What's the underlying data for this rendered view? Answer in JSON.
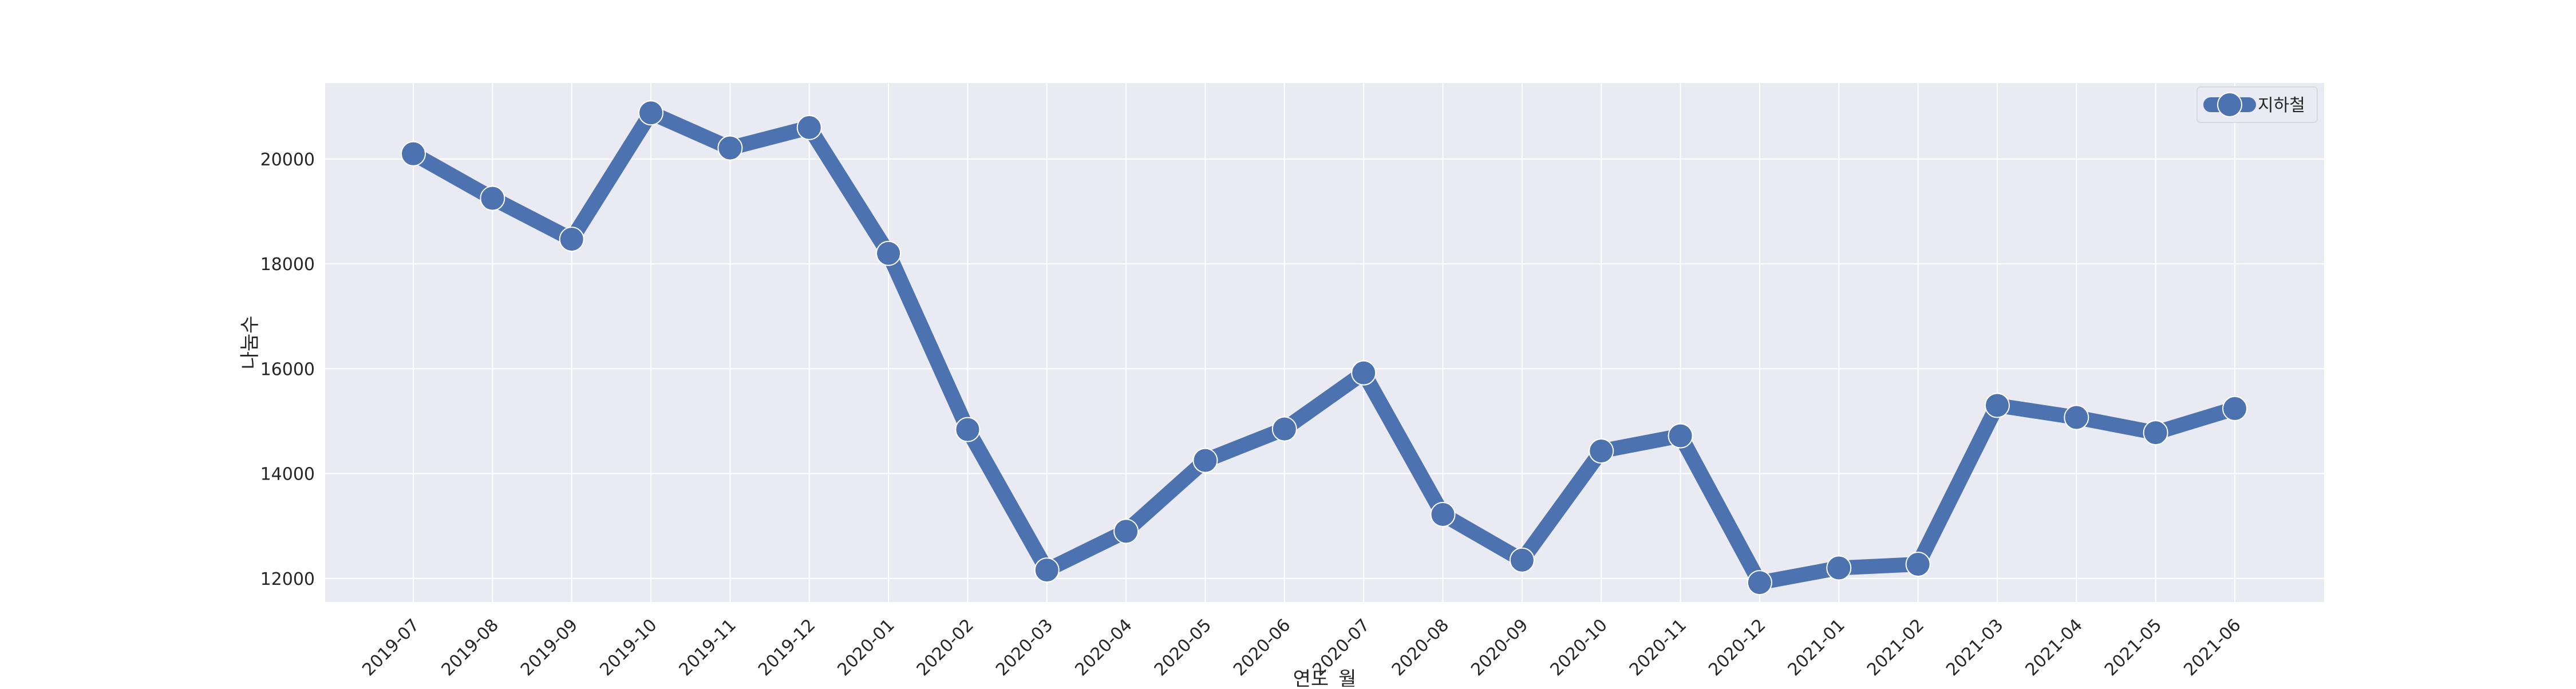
{
  "chart_data": {
    "type": "line",
    "title": "",
    "xlabel": "연도_월",
    "ylabel": "나눔수",
    "categories": [
      "2019-07",
      "2019-08",
      "2019-09",
      "2019-10",
      "2019-11",
      "2019-12",
      "2020-01",
      "2020-02",
      "2020-03",
      "2020-04",
      "2020-05",
      "2020-06",
      "2020-07",
      "2020-08",
      "2020-09",
      "2020-10",
      "2020-11",
      "2020-12",
      "2021-01",
      "2021-02",
      "2021-03",
      "2021-04",
      "2021-05",
      "2021-06"
    ],
    "series": [
      {
        "name": "지하철",
        "color": "#4c72b0",
        "values": [
          20100,
          19250,
          18470,
          20880,
          20210,
          20600,
          18200,
          14840,
          12160,
          12900,
          14250,
          14850,
          15920,
          13220,
          12350,
          14430,
          14720,
          11920,
          12200,
          12270,
          15300,
          15070,
          14780,
          15240
        ]
      }
    ],
    "ylim": [
      11550,
      21450
    ],
    "yticks": [
      12000,
      14000,
      16000,
      18000,
      20000
    ],
    "grid": true,
    "legend_position": "top-right",
    "background_color": "#eaeaf2",
    "grid_color": "#ffffff"
  }
}
